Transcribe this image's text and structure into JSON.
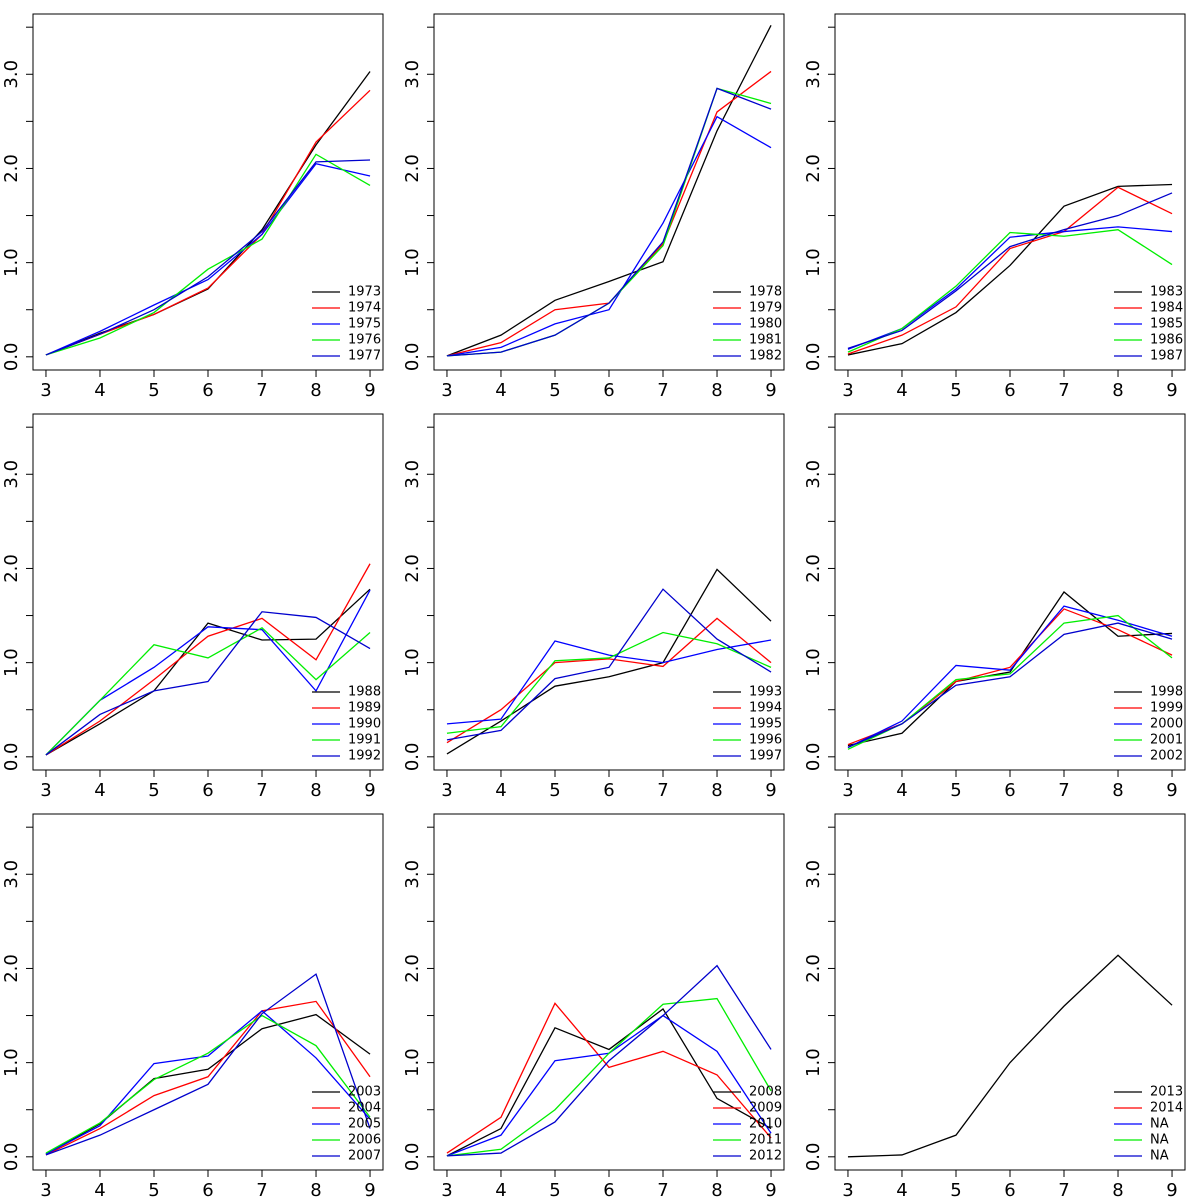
{
  "chart_data": [
    {
      "type": "line",
      "legend": "bottomright",
      "x": [
        3,
        4,
        5,
        6,
        7,
        8,
        9
      ],
      "xlim": [
        2.76,
        9.24
      ],
      "ylim": [
        -0.14,
        3.64
      ],
      "xticks": [
        3,
        4,
        5,
        6,
        7,
        8,
        9
      ],
      "yticks": [
        {
          "value": 0,
          "label": "0.0"
        },
        {
          "value": 0.5
        },
        {
          "value": 1,
          "label": "1.0"
        },
        {
          "value": 1.5
        },
        {
          "value": 2,
          "label": "2.0"
        },
        {
          "value": 2.5
        },
        {
          "value": 3,
          "label": "3.0"
        },
        {
          "value": 3.5
        }
      ],
      "series": [
        {
          "name": "1973",
          "color": "#000000",
          "values": [
            0.02,
            0.25,
            0.45,
            0.72,
            1.35,
            2.25,
            3.03
          ]
        },
        {
          "name": "1974",
          "color": "#ff0000",
          "values": [
            0.02,
            0.24,
            0.45,
            0.73,
            1.3,
            2.28,
            2.83
          ]
        },
        {
          "name": "1975",
          "color": "#0000ff",
          "values": [
            0.02,
            0.27,
            0.55,
            0.82,
            1.3,
            2.05,
            1.92
          ]
        },
        {
          "name": "1976",
          "color": "#00ee00",
          "values": [
            0.02,
            0.2,
            0.47,
            0.93,
            1.25,
            2.15,
            1.82
          ]
        },
        {
          "name": "1977",
          "color": "#0000cd",
          "values": [
            0.02,
            0.24,
            0.5,
            0.85,
            1.33,
            2.07,
            2.09
          ]
        }
      ]
    },
    {
      "type": "line",
      "legend": "bottomright",
      "x": [
        3,
        4,
        5,
        6,
        7,
        8,
        9
      ],
      "xlim": [
        2.76,
        9.24
      ],
      "ylim": [
        -0.14,
        3.64
      ],
      "xticks": [
        3,
        4,
        5,
        6,
        7,
        8,
        9
      ],
      "yticks": [
        {
          "value": 0,
          "label": "0.0"
        },
        {
          "value": 0.5
        },
        {
          "value": 1,
          "label": "1.0"
        },
        {
          "value": 1.5
        },
        {
          "value": 2,
          "label": "2.0"
        },
        {
          "value": 2.5
        },
        {
          "value": 3,
          "label": "3.0"
        },
        {
          "value": 3.5
        }
      ],
      "series": [
        {
          "name": "1978",
          "color": "#000000",
          "values": [
            0.01,
            0.23,
            0.6,
            0.8,
            1.01,
            2.4,
            3.52
          ]
        },
        {
          "name": "1979",
          "color": "#ff0000",
          "values": [
            0.01,
            0.15,
            0.5,
            0.57,
            1.2,
            2.6,
            3.03
          ]
        },
        {
          "name": "1980",
          "color": "#0000ff",
          "values": [
            0.01,
            0.1,
            0.35,
            0.5,
            1.42,
            2.55,
            2.22
          ]
        },
        {
          "name": "1981",
          "color": "#00ee00",
          "values": [
            0.01,
            0.05,
            0.23,
            0.57,
            1.18,
            2.85,
            2.69
          ]
        },
        {
          "name": "1982",
          "color": "#0000cd",
          "values": [
            0.01,
            0.05,
            0.23,
            0.57,
            1.22,
            2.85,
            2.63
          ]
        }
      ]
    },
    {
      "type": "line",
      "legend": "bottomright",
      "x": [
        3,
        4,
        5,
        6,
        7,
        8,
        9
      ],
      "xlim": [
        2.76,
        9.24
      ],
      "ylim": [
        -0.14,
        3.64
      ],
      "xticks": [
        3,
        4,
        5,
        6,
        7,
        8,
        9
      ],
      "yticks": [
        {
          "value": 0,
          "label": "0.0"
        },
        {
          "value": 0.5
        },
        {
          "value": 1,
          "label": "1.0"
        },
        {
          "value": 1.5
        },
        {
          "value": 2,
          "label": "2.0"
        },
        {
          "value": 2.5
        },
        {
          "value": 3,
          "label": "3.0"
        },
        {
          "value": 3.5
        }
      ],
      "series": [
        {
          "name": "1983",
          "color": "#000000",
          "values": [
            0.02,
            0.14,
            0.47,
            0.97,
            1.6,
            1.81,
            1.83
          ]
        },
        {
          "name": "1984",
          "color": "#ff0000",
          "values": [
            0.03,
            0.23,
            0.53,
            1.15,
            1.33,
            1.8,
            1.52
          ]
        },
        {
          "name": "1985",
          "color": "#0000ff",
          "values": [
            0.08,
            0.3,
            0.72,
            1.27,
            1.33,
            1.38,
            1.33
          ]
        },
        {
          "name": "1986",
          "color": "#00ee00",
          "values": [
            0.05,
            0.3,
            0.75,
            1.32,
            1.28,
            1.35,
            0.98
          ]
        },
        {
          "name": "1987",
          "color": "#0000cd",
          "values": [
            0.09,
            0.28,
            0.7,
            1.17,
            1.35,
            1.5,
            1.74
          ]
        }
      ]
    },
    {
      "type": "line",
      "legend": "bottomright",
      "x": [
        3,
        4,
        5,
        6,
        7,
        8,
        9
      ],
      "xlim": [
        2.76,
        9.24
      ],
      "ylim": [
        -0.14,
        3.64
      ],
      "xticks": [
        3,
        4,
        5,
        6,
        7,
        8,
        9
      ],
      "yticks": [
        {
          "value": 0,
          "label": "0.0"
        },
        {
          "value": 0.5
        },
        {
          "value": 1,
          "label": "1.0"
        },
        {
          "value": 1.5
        },
        {
          "value": 2,
          "label": "2.0"
        },
        {
          "value": 2.5
        },
        {
          "value": 3,
          "label": "3.0"
        },
        {
          "value": 3.5
        }
      ],
      "series": [
        {
          "name": "1988",
          "color": "#000000",
          "values": [
            0.02,
            0.35,
            0.7,
            1.42,
            1.24,
            1.25,
            1.78
          ]
        },
        {
          "name": "1989",
          "color": "#ff0000",
          "values": [
            0.02,
            0.38,
            0.82,
            1.28,
            1.47,
            1.03,
            2.05
          ]
        },
        {
          "name": "1990",
          "color": "#0000ff",
          "values": [
            0.02,
            0.6,
            0.95,
            1.38,
            1.35,
            0.7,
            1.77
          ]
        },
        {
          "name": "1991",
          "color": "#00ee00",
          "values": [
            0.02,
            0.6,
            1.19,
            1.05,
            1.37,
            0.82,
            1.32
          ]
        },
        {
          "name": "1992",
          "color": "#0000cd",
          "values": [
            0.02,
            0.45,
            0.7,
            0.8,
            1.54,
            1.48,
            1.15
          ]
        }
      ]
    },
    {
      "type": "line",
      "legend": "bottomright",
      "x": [
        3,
        4,
        5,
        6,
        7,
        8,
        9
      ],
      "xlim": [
        2.76,
        9.24
      ],
      "ylim": [
        -0.14,
        3.64
      ],
      "xticks": [
        3,
        4,
        5,
        6,
        7,
        8,
        9
      ],
      "yticks": [
        {
          "value": 0,
          "label": "0.0"
        },
        {
          "value": 0.5
        },
        {
          "value": 1,
          "label": "1.0"
        },
        {
          "value": 1.5
        },
        {
          "value": 2,
          "label": "2.0"
        },
        {
          "value": 2.5
        },
        {
          "value": 3,
          "label": "3.0"
        },
        {
          "value": 3.5
        }
      ],
      "series": [
        {
          "name": "1993",
          "color": "#000000",
          "values": [
            0.03,
            0.38,
            0.75,
            0.85,
            1.0,
            1.99,
            1.44
          ]
        },
        {
          "name": "1994",
          "color": "#ff0000",
          "values": [
            0.15,
            0.5,
            1.0,
            1.04,
            0.96,
            1.47,
            1.0
          ]
        },
        {
          "name": "1995",
          "color": "#0000ff",
          "values": [
            0.35,
            0.4,
            1.23,
            1.08,
            1.0,
            1.14,
            1.24
          ]
        },
        {
          "name": "1996",
          "color": "#00ee00",
          "values": [
            0.25,
            0.32,
            1.02,
            1.05,
            1.32,
            1.2,
            0.95
          ]
        },
        {
          "name": "1997",
          "color": "#0000cd",
          "values": [
            0.18,
            0.28,
            0.83,
            0.95,
            1.78,
            1.25,
            0.9
          ]
        }
      ]
    },
    {
      "type": "line",
      "legend": "bottomright",
      "x": [
        3,
        4,
        5,
        6,
        7,
        8,
        9
      ],
      "xlim": [
        2.76,
        9.24
      ],
      "ylim": [
        -0.14,
        3.64
      ],
      "xticks": [
        3,
        4,
        5,
        6,
        7,
        8,
        9
      ],
      "yticks": [
        {
          "value": 0,
          "label": "0.0"
        },
        {
          "value": 0.5
        },
        {
          "value": 1,
          "label": "1.0"
        },
        {
          "value": 1.5
        },
        {
          "value": 2,
          "label": "2.0"
        },
        {
          "value": 2.5
        },
        {
          "value": 3,
          "label": "3.0"
        },
        {
          "value": 3.5
        }
      ],
      "series": [
        {
          "name": "1998",
          "color": "#000000",
          "values": [
            0.12,
            0.25,
            0.8,
            0.9,
            1.75,
            1.28,
            1.31
          ]
        },
        {
          "name": "1999",
          "color": "#ff0000",
          "values": [
            0.13,
            0.35,
            0.8,
            0.95,
            1.57,
            1.35,
            1.08
          ]
        },
        {
          "name": "2000",
          "color": "#0000ff",
          "values": [
            0.1,
            0.38,
            0.97,
            0.92,
            1.6,
            1.45,
            1.28
          ]
        },
        {
          "name": "2001",
          "color": "#00ee00",
          "values": [
            0.08,
            0.35,
            0.82,
            0.88,
            1.42,
            1.5,
            1.05
          ]
        },
        {
          "name": "2002",
          "color": "#0000cd",
          "values": [
            0.1,
            0.35,
            0.76,
            0.85,
            1.3,
            1.42,
            1.25
          ]
        }
      ]
    },
    {
      "type": "line",
      "legend": "bottomright",
      "x": [
        3,
        4,
        5,
        6,
        7,
        8,
        9
      ],
      "xlim": [
        2.76,
        9.24
      ],
      "ylim": [
        -0.14,
        3.64
      ],
      "xticks": [
        3,
        4,
        5,
        6,
        7,
        8,
        9
      ],
      "yticks": [
        {
          "value": 0,
          "label": "0.0"
        },
        {
          "value": 0.5
        },
        {
          "value": 1,
          "label": "1.0"
        },
        {
          "value": 1.5
        },
        {
          "value": 2,
          "label": "2.0"
        },
        {
          "value": 2.5
        },
        {
          "value": 3,
          "label": "3.0"
        },
        {
          "value": 3.5
        }
      ],
      "series": [
        {
          "name": "2003",
          "color": "#000000",
          "values": [
            0.03,
            0.35,
            0.83,
            0.93,
            1.36,
            1.51,
            1.09
          ]
        },
        {
          "name": "2004",
          "color": "#ff0000",
          "values": [
            0.02,
            0.3,
            0.65,
            0.85,
            1.55,
            1.65,
            0.85
          ]
        },
        {
          "name": "2005",
          "color": "#0000ff",
          "values": [
            0.03,
            0.33,
            0.99,
            1.07,
            1.55,
            1.05,
            0.4
          ]
        },
        {
          "name": "2006",
          "color": "#00ee00",
          "values": [
            0.04,
            0.36,
            0.82,
            1.1,
            1.5,
            1.18,
            0.42
          ]
        },
        {
          "name": "2007",
          "color": "#0000cd",
          "values": [
            0.02,
            0.23,
            0.5,
            0.77,
            1.52,
            1.94,
            0.3
          ]
        }
      ]
    },
    {
      "type": "line",
      "legend": "bottomright",
      "x": [
        3,
        4,
        5,
        6,
        7,
        8,
        9
      ],
      "xlim": [
        2.76,
        9.24
      ],
      "ylim": [
        -0.14,
        3.64
      ],
      "xticks": [
        3,
        4,
        5,
        6,
        7,
        8,
        9
      ],
      "yticks": [
        {
          "value": 0,
          "label": "0.0"
        },
        {
          "value": 0.5
        },
        {
          "value": 1,
          "label": "1.0"
        },
        {
          "value": 1.5
        },
        {
          "value": 2,
          "label": "2.0"
        },
        {
          "value": 2.5
        },
        {
          "value": 3,
          "label": "3.0"
        },
        {
          "value": 3.5
        }
      ],
      "series": [
        {
          "name": "2008",
          "color": "#000000",
          "values": [
            0.01,
            0.3,
            1.37,
            1.14,
            1.57,
            0.62,
            0.3
          ]
        },
        {
          "name": "2009",
          "color": "#ff0000",
          "values": [
            0.04,
            0.42,
            1.63,
            0.95,
            1.12,
            0.87,
            0.2
          ]
        },
        {
          "name": "2010",
          "color": "#0000ff",
          "values": [
            0.01,
            0.23,
            1.02,
            1.1,
            1.5,
            1.12,
            0.25
          ]
        },
        {
          "name": "2011",
          "color": "#00ee00",
          "values": [
            0.01,
            0.08,
            0.5,
            1.1,
            1.62,
            1.68,
            0.7
          ]
        },
        {
          "name": "2012",
          "color": "#0000cd",
          "values": [
            0.01,
            0.04,
            0.37,
            1.02,
            1.5,
            2.03,
            1.14
          ]
        }
      ]
    },
    {
      "type": "line",
      "legend": "bottomright",
      "x": [
        3,
        4,
        5,
        6,
        7,
        8,
        9
      ],
      "xlim": [
        2.76,
        9.24
      ],
      "ylim": [
        -0.14,
        3.64
      ],
      "xticks": [
        3,
        4,
        5,
        6,
        7,
        8,
        9
      ],
      "yticks": [
        {
          "value": 0,
          "label": "0.0"
        },
        {
          "value": 0.5
        },
        {
          "value": 1,
          "label": "1.0"
        },
        {
          "value": 1.5
        },
        {
          "value": 2,
          "label": "2.0"
        },
        {
          "value": 2.5
        },
        {
          "value": 3,
          "label": "3.0"
        },
        {
          "value": 3.5
        }
      ],
      "series": [
        {
          "name": "2013",
          "color": "#000000",
          "values": [
            0.0,
            0.02,
            0.23,
            1.0,
            1.6,
            2.14,
            1.61
          ]
        },
        {
          "name": "2014",
          "color": "#ff0000",
          "values": [
            null,
            null,
            null,
            null,
            null,
            null,
            null
          ]
        },
        {
          "name": "NA",
          "color": "#0000ff",
          "values": [
            null,
            null,
            null,
            null,
            null,
            null,
            null
          ]
        },
        {
          "name": "NA",
          "color": "#00ee00",
          "values": [
            null,
            null,
            null,
            null,
            null,
            null,
            null
          ]
        },
        {
          "name": "NA",
          "color": "#0000cd",
          "values": [
            null,
            null,
            null,
            null,
            null,
            null,
            null
          ]
        }
      ]
    }
  ]
}
